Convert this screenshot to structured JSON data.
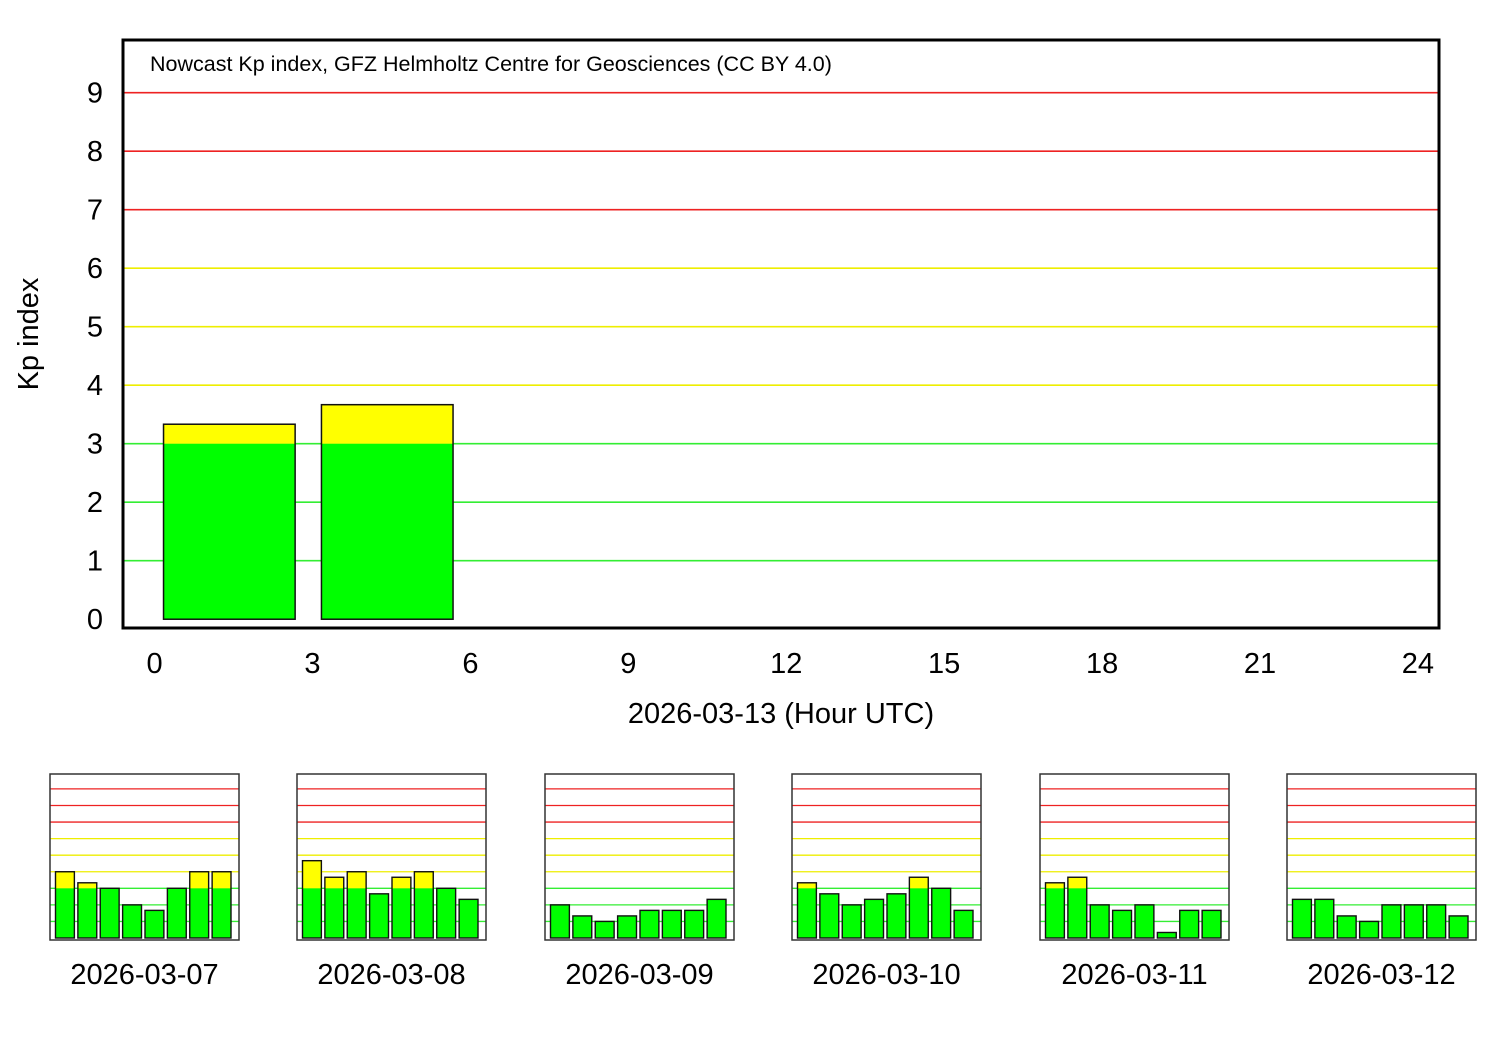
{
  "chart_data": [
    {
      "type": "bar",
      "title": "Nowcast Kp index, GFZ Helmholtz Centre for Geosciences (CC BY 4.0)",
      "xlabel": "2026-03-13 (Hour UTC)",
      "ylabel": "Kp index",
      "xlim": [
        -0.6,
        24.4
      ],
      "ylim": [
        -0.15,
        9.9
      ],
      "xticks": [
        "0",
        "3",
        "6",
        "9",
        "12",
        "15",
        "18",
        "21",
        "24"
      ],
      "yticks": [
        "0",
        "1",
        "2",
        "3",
        "4",
        "5",
        "6",
        "7",
        "8",
        "9"
      ],
      "grid": true,
      "x_start_hours": [
        0,
        3
      ],
      "values": [
        3.333,
        3.667
      ]
    },
    {
      "type": "bar",
      "xlabel": "2026-03-07",
      "ylim": [
        0,
        9.9
      ],
      "values": [
        4.0,
        3.333,
        3.0,
        2.0,
        1.667,
        3.0,
        4.0,
        4.0
      ]
    },
    {
      "type": "bar",
      "xlabel": "2026-03-08",
      "ylim": [
        0,
        9.9
      ],
      "values": [
        4.667,
        3.667,
        4.0,
        2.667,
        3.667,
        4.0,
        3.0,
        2.333
      ]
    },
    {
      "type": "bar",
      "xlabel": "2026-03-09",
      "ylim": [
        0,
        9.9
      ],
      "values": [
        2.0,
        1.333,
        1.0,
        1.333,
        1.667,
        1.667,
        1.667,
        2.333
      ]
    },
    {
      "type": "bar",
      "xlabel": "2026-03-10",
      "ylim": [
        0,
        9.9
      ],
      "values": [
        3.333,
        2.667,
        2.0,
        2.333,
        2.667,
        3.667,
        3.0,
        1.667
      ]
    },
    {
      "type": "bar",
      "xlabel": "2026-03-11",
      "ylim": [
        0,
        9.9
      ],
      "values": [
        3.333,
        3.667,
        2.0,
        1.667,
        2.0,
        0.333,
        1.667,
        1.667
      ]
    },
    {
      "type": "bar",
      "xlabel": "2026-03-12",
      "ylim": [
        0,
        9.9
      ],
      "values": [
        2.333,
        2.333,
        1.333,
        1.0,
        2.0,
        2.0,
        2.0,
        1.333
      ]
    }
  ],
  "colors": {
    "quiet": "#00ff00",
    "active": "#ffff00",
    "storm": "#ff0000",
    "grid_green": "#33ee33",
    "grid_yellow": "#eeee00",
    "grid_red": "#ee2222"
  }
}
